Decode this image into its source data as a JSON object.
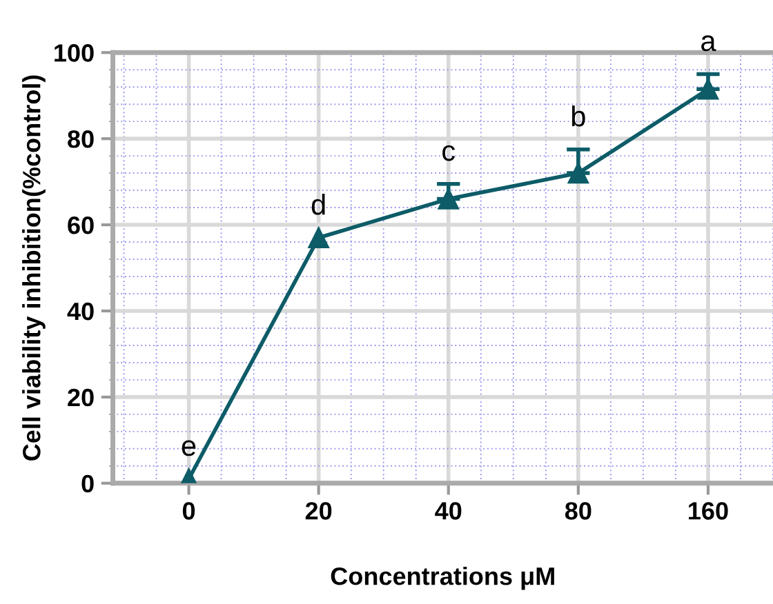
{
  "chart_data": {
    "type": "line",
    "xlabel": "Concentrations μM",
    "ylabel": "Cell viability inhibition(%control)",
    "categories": [
      "0",
      "20",
      "40",
      "80",
      "160"
    ],
    "series": [
      {
        "color": "#0d5c68",
        "values": [
          1,
          57,
          66,
          72,
          91.5
        ],
        "errors": [
          null,
          null,
          [
            66,
            69.5
          ],
          [
            72,
            77.5
          ],
          [
            91.5,
            95
          ]
        ]
      }
    ],
    "ylim": [
      0,
      100
    ],
    "yticks": [
      0,
      20,
      40,
      60,
      80,
      100
    ],
    "grid": true,
    "marker": "triangle",
    "line_style": "solid",
    "annotations": [
      {
        "text": "e",
        "x": "0",
        "y": 1
      },
      {
        "text": "d",
        "x": "20",
        "y": 57
      },
      {
        "text": "c",
        "x": "40",
        "y": 69.5
      },
      {
        "text": "b",
        "x": "80",
        "y": 77.5
      },
      {
        "text": "a",
        "x": "160",
        "y": 95
      }
    ]
  }
}
